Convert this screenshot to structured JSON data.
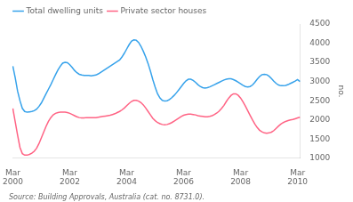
{
  "chart_data": {
    "type": "line",
    "annotations": [
      "Source: Building Approvals, Australia (cat. no. 8731.0)."
    ],
    "categories": [
      "Mar\n2000",
      null,
      null,
      null,
      null,
      null,
      null,
      null,
      null,
      null,
      null,
      null,
      null,
      null,
      null,
      null,
      null,
      null,
      null,
      null,
      null,
      null,
      null,
      null,
      "Mar\n2002",
      null,
      null,
      null,
      null,
      null,
      null,
      null,
      null,
      null,
      null,
      null,
      null,
      null,
      null,
      null,
      null,
      null,
      null,
      null,
      null,
      null,
      null,
      null,
      "Mar\n2004",
      null,
      null,
      null,
      null,
      null,
      null,
      null,
      null,
      null,
      null,
      null,
      null,
      null,
      null,
      null,
      null,
      null,
      null,
      null,
      null,
      null,
      null,
      null,
      "Mar\n2006",
      null,
      null,
      null,
      null,
      null,
      null,
      null,
      null,
      null,
      null,
      null,
      null,
      null,
      null,
      null,
      null,
      null,
      null,
      null,
      null,
      null,
      null,
      null,
      "Mar\n2008",
      null,
      null,
      null,
      null,
      null,
      null,
      null,
      null,
      null,
      null,
      null,
      null,
      null,
      null,
      null,
      null,
      null,
      null,
      null,
      null,
      null,
      null,
      null,
      "Mar\n2010",
      null
    ],
    "series": [
      {
        "name": "Total dwelling units",
        "values": [
          3400,
          3100,
          2750,
          2500,
          2300,
          2220,
          2200,
          2210,
          2220,
          2240,
          2280,
          2350,
          2440,
          2560,
          2680,
          2800,
          2920,
          3050,
          3180,
          3300,
          3400,
          3480,
          3500,
          3490,
          3440,
          3370,
          3290,
          3230,
          3190,
          3170,
          3160,
          3160,
          3160,
          3150,
          3160,
          3170,
          3200,
          3240,
          3280,
          3320,
          3360,
          3400,
          3440,
          3480,
          3520,
          3560,
          3640,
          3740,
          3850,
          3960,
          4050,
          4090,
          4080,
          4020,
          3920,
          3790,
          3640,
          3470,
          3270,
          3050,
          2850,
          2680,
          2570,
          2510,
          2490,
          2500,
          2530,
          2580,
          2640,
          2710,
          2790,
          2870,
          2950,
          3020,
          3060,
          3060,
          3030,
          2980,
          2920,
          2870,
          2840,
          2830,
          2840,
          2860,
          2890,
          2920,
          2950,
          2980,
          3010,
          3040,
          3060,
          3070,
          3070,
          3050,
          3020,
          2980,
          2940,
          2900,
          2870,
          2860,
          2870,
          2910,
          2980,
          3060,
          3130,
          3180,
          3190,
          3180,
          3140,
          3080,
          3010,
          2950,
          2910,
          2890,
          2890,
          2900,
          2920,
          2950,
          2980,
          3010,
          3050,
          3000
        ]
      },
      {
        "name": "Private sector houses",
        "values": [
          2300,
          1950,
          1600,
          1280,
          1120,
          1080,
          1080,
          1100,
          1130,
          1180,
          1260,
          1380,
          1530,
          1680,
          1830,
          1960,
          2060,
          2130,
          2170,
          2190,
          2200,
          2200,
          2200,
          2190,
          2170,
          2140,
          2110,
          2080,
          2060,
          2050,
          2050,
          2060,
          2060,
          2060,
          2060,
          2060,
          2070,
          2080,
          2090,
          2100,
          2110,
          2120,
          2140,
          2160,
          2190,
          2220,
          2260,
          2310,
          2370,
          2430,
          2480,
          2510,
          2510,
          2490,
          2450,
          2390,
          2310,
          2220,
          2130,
          2040,
          1980,
          1930,
          1900,
          1880,
          1870,
          1880,
          1900,
          1930,
          1970,
          2010,
          2050,
          2090,
          2120,
          2140,
          2150,
          2150,
          2140,
          2130,
          2110,
          2100,
          2090,
          2080,
          2080,
          2090,
          2110,
          2140,
          2180,
          2230,
          2300,
          2380,
          2480,
          2570,
          2640,
          2680,
          2680,
          2640,
          2570,
          2470,
          2360,
          2240,
          2120,
          2000,
          1890,
          1800,
          1730,
          1690,
          1660,
          1650,
          1660,
          1680,
          1720,
          1780,
          1840,
          1890,
          1930,
          1960,
          1980,
          2000,
          2010,
          2030,
          2050,
          2070
        ]
      }
    ],
    "y_label": "no.",
    "ylim": [
      1000,
      4500
    ],
    "yticks": [
      1000,
      1500,
      2000,
      2500,
      3000,
      3500,
      4000,
      4500
    ],
    "grid": false,
    "legend": "upper left"
  }
}
